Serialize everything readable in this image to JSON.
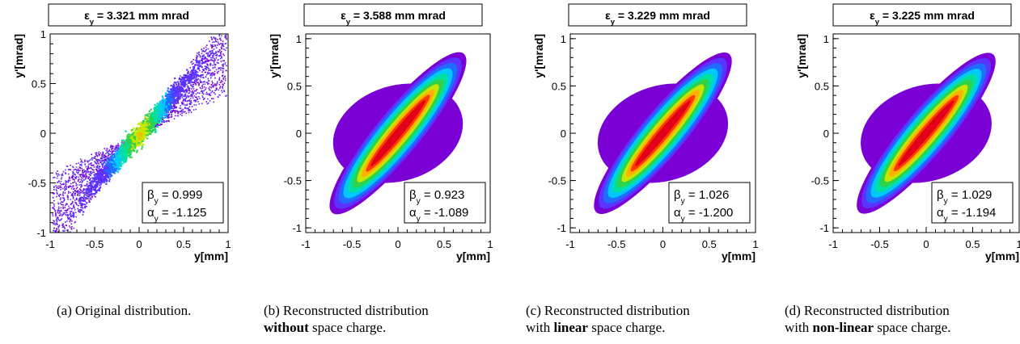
{
  "colormap": [
    "#7a00d6",
    "#5b33ff",
    "#1f6cff",
    "#00c8ff",
    "#00e0a0",
    "#2fd24a",
    "#c6e600",
    "#ffb000",
    "#ff3a00",
    "#e0001a"
  ],
  "chart_data": [
    {
      "type": "heatmap",
      "title": "ε_y = 3.321 mm mrad",
      "title_main": "ε",
      "title_sub": "y",
      "title_rest": " = 3.321 mm mrad",
      "xlabel": "y[mm]",
      "ylabel": "y'[mrad]",
      "xlim": [
        -1,
        1
      ],
      "ylim": [
        -1,
        1
      ],
      "xticks": [
        -1,
        -0.5,
        0,
        0.5,
        1
      ],
      "yticks": [
        -1,
        -0.5,
        0,
        0.5,
        1
      ],
      "xtick_labels": [
        "-1",
        "-0.5",
        "0",
        "0.5",
        "1"
      ],
      "ytick_labels": [
        "-1",
        "-0.5",
        "0",
        "0.5",
        "1"
      ],
      "stats": [
        {
          "sym": "β",
          "sub": "y",
          "value": " = 0.999"
        },
        {
          "sym": "α",
          "sub": "y",
          "value": " = -1.125"
        }
      ],
      "beta": 0.999,
      "alpha": -1.125,
      "emittance": 3.321,
      "style": "scatter",
      "caption_label": "(a)",
      "caption_lines": [
        [
          {
            "t": "Original distribution.",
            "b": false
          }
        ]
      ]
    },
    {
      "type": "heatmap",
      "title": "ε_y = 3.588 mm mrad",
      "title_main": "ε",
      "title_sub": "y",
      "title_rest": " = 3.588 mm mrad",
      "xlabel": "y[mm]",
      "ylabel": "y'[mrad]",
      "xlim": [
        -1,
        1
      ],
      "ylim": [
        -1.05,
        1.05
      ],
      "xticks": [
        -1,
        -0.5,
        0,
        0.5,
        1
      ],
      "yticks": [
        -1,
        -0.5,
        0,
        0.5,
        1
      ],
      "xtick_labels": [
        "-1",
        "-0.5",
        "0",
        "0.5",
        "1"
      ],
      "ytick_labels": [
        "-1",
        "-0.5",
        "0",
        "0.5",
        "1"
      ],
      "stats": [
        {
          "sym": "β",
          "sub": "y",
          "value": " = 0.923"
        },
        {
          "sym": "α",
          "sub": "y",
          "value": " = -1.089"
        }
      ],
      "beta": 0.923,
      "alpha": -1.089,
      "emittance": 3.588,
      "style": "smooth",
      "caption_label": "(b)",
      "caption_lines": [
        [
          {
            "t": "Reconstructed distribution",
            "b": false
          }
        ],
        [
          {
            "t": "without",
            "b": true
          },
          {
            "t": " space charge.",
            "b": false
          }
        ]
      ]
    },
    {
      "type": "heatmap",
      "title": "ε_y = 3.229 mm mrad",
      "title_main": "ε",
      "title_sub": "y",
      "title_rest": " = 3.229 mm mrad",
      "xlabel": "y[mm]",
      "ylabel": "y'[mrad]",
      "xlim": [
        -1,
        1
      ],
      "ylim": [
        -1.05,
        1.05
      ],
      "xticks": [
        -1,
        -0.5,
        0,
        0.5,
        1
      ],
      "yticks": [
        -1,
        -0.5,
        0,
        0.5,
        1
      ],
      "xtick_labels": [
        "-1",
        "-0.5",
        "0",
        "0.5",
        "1"
      ],
      "ytick_labels": [
        "-1",
        "-0.5",
        "0",
        "0.5",
        "1"
      ],
      "stats": [
        {
          "sym": "β",
          "sub": "y",
          "value": " = 1.026"
        },
        {
          "sym": "α",
          "sub": "y",
          "value": " = -1.200"
        }
      ],
      "beta": 1.026,
      "alpha": -1.2,
      "emittance": 3.229,
      "style": "smooth",
      "caption_label": "(c)",
      "caption_lines": [
        [
          {
            "t": "Reconstructed distribution",
            "b": false
          }
        ],
        [
          {
            "t": "with ",
            "b": false
          },
          {
            "t": "linear",
            "b": true
          },
          {
            "t": " space charge.",
            "b": false
          }
        ]
      ]
    },
    {
      "type": "heatmap",
      "title": "ε_y = 3.225 mm mrad",
      "title_main": "ε",
      "title_sub": "y",
      "title_rest": " = 3.225 mm mrad",
      "xlabel": "y[mm]",
      "ylabel": "y'[mrad]",
      "xlim": [
        -1,
        1
      ],
      "ylim": [
        -1.05,
        1.05
      ],
      "xticks": [
        -1,
        -0.5,
        0,
        0.5,
        1
      ],
      "yticks": [
        -1,
        -0.5,
        0,
        0.5,
        1
      ],
      "xtick_labels": [
        "-1",
        "-0.5",
        "0",
        "0.5",
        "1"
      ],
      "ytick_labels": [
        "-1",
        "-0.5",
        "0",
        "0.5",
        "1"
      ],
      "stats": [
        {
          "sym": "β",
          "sub": "y",
          "value": " = 1.029"
        },
        {
          "sym": "α",
          "sub": "y",
          "value": " = -1.194"
        }
      ],
      "beta": 1.029,
      "alpha": -1.194,
      "emittance": 3.225,
      "style": "smooth",
      "caption_label": "(d)",
      "caption_lines": [
        [
          {
            "t": "Reconstructed distribution",
            "b": false
          }
        ],
        [
          {
            "t": "with ",
            "b": false
          },
          {
            "t": "non-linear",
            "b": true
          },
          {
            "t": " space charge.",
            "b": false
          }
        ]
      ]
    }
  ]
}
